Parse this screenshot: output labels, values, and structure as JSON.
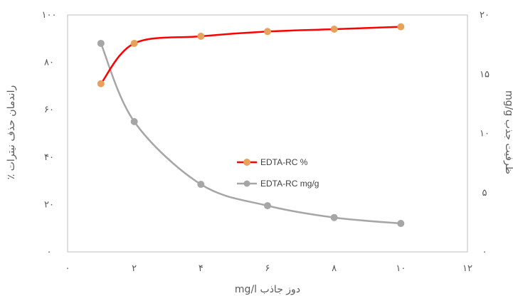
{
  "chart_data": {
    "type": "line",
    "title": "",
    "xlabel": "دوز جاذب mg/l",
    "ylabel": "راندمان حذف نیترات ٪",
    "y2label": "ظرفیت جذب mg/g",
    "xlim": [
      0,
      12
    ],
    "ylim": [
      0,
      100
    ],
    "y2lim": [
      0,
      20
    ],
    "x_ticks": [
      0,
      2,
      4,
      6,
      8,
      10,
      12
    ],
    "y_ticks": [
      0,
      20,
      40,
      60,
      80,
      100
    ],
    "y2_ticks": [
      0,
      5,
      10,
      15,
      20
    ],
    "x_tick_labels": [
      "۰",
      "۲",
      "۴",
      "۶",
      "۸",
      "۱۰",
      "۱۲"
    ],
    "y_tick_labels": [
      "۰",
      "۲۰",
      "۴۰",
      "۶۰",
      "۸۰",
      "۱۰۰"
    ],
    "y2_tick_labels": [
      "۰",
      "۵",
      "۱۰",
      "۱۵",
      "۲۰"
    ],
    "grid": false,
    "legend_position": "center",
    "series": [
      {
        "name": "EDTA-RC %",
        "axis": "left",
        "color": "#ff0000",
        "marker_color": "#e8a05a",
        "x": [
          1,
          2,
          4,
          6,
          8,
          10
        ],
        "y": [
          71,
          88,
          91,
          93,
          94,
          95
        ]
      },
      {
        "name": "EDTA-RC mg/g",
        "axis": "right",
        "color": "#a6a6a6",
        "marker_color": "#a6a6a6",
        "x": [
          1,
          2,
          4,
          6,
          8,
          10
        ],
        "y": [
          17.6,
          11,
          5.7,
          3.9,
          2.9,
          2.4
        ]
      }
    ]
  }
}
